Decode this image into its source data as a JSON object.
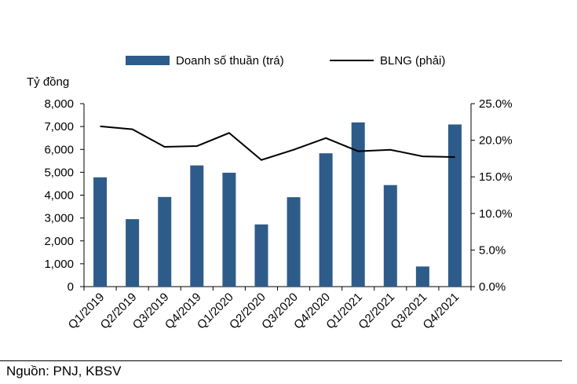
{
  "chart_data": {
    "type": "bar",
    "categories": [
      "Q1/2019",
      "Q2/2019",
      "Q3/2019",
      "Q4/2019",
      "Q1/2020",
      "Q2/2020",
      "Q3/2020",
      "Q4/2020",
      "Q1/2021",
      "Q2/2021",
      "Q3/2021",
      "Q4/2021"
    ],
    "series": [
      {
        "name": "Doanh số thuần (trá)",
        "type": "bar",
        "axis": "left",
        "color": "#2e5c8a",
        "values": [
          4780,
          2950,
          3920,
          5300,
          4980,
          2720,
          3910,
          5830,
          7180,
          4440,
          880,
          7090
        ]
      },
      {
        "name": "BLNG (phải)",
        "type": "line",
        "axis": "right",
        "color": "#000000",
        "values": [
          21.9,
          21.5,
          19.1,
          19.2,
          21.0,
          17.3,
          18.7,
          20.3,
          18.5,
          18.7,
          17.8,
          17.7
        ]
      }
    ],
    "left_axis": {
      "label": "Tỷ đồng",
      "min": 0,
      "max": 8000,
      "ticks": [
        "0",
        "1,000",
        "2,000",
        "3,000",
        "4,000",
        "5,000",
        "6,000",
        "7,000",
        "8,000"
      ]
    },
    "right_axis": {
      "min": 0,
      "max": 25,
      "ticks": [
        "0.0%",
        "5.0%",
        "10.0%",
        "15.0%",
        "20.0%",
        "25.0%"
      ]
    },
    "legend_position": "top",
    "grid": false
  },
  "source": "Nguồn: PNJ, KBSV"
}
